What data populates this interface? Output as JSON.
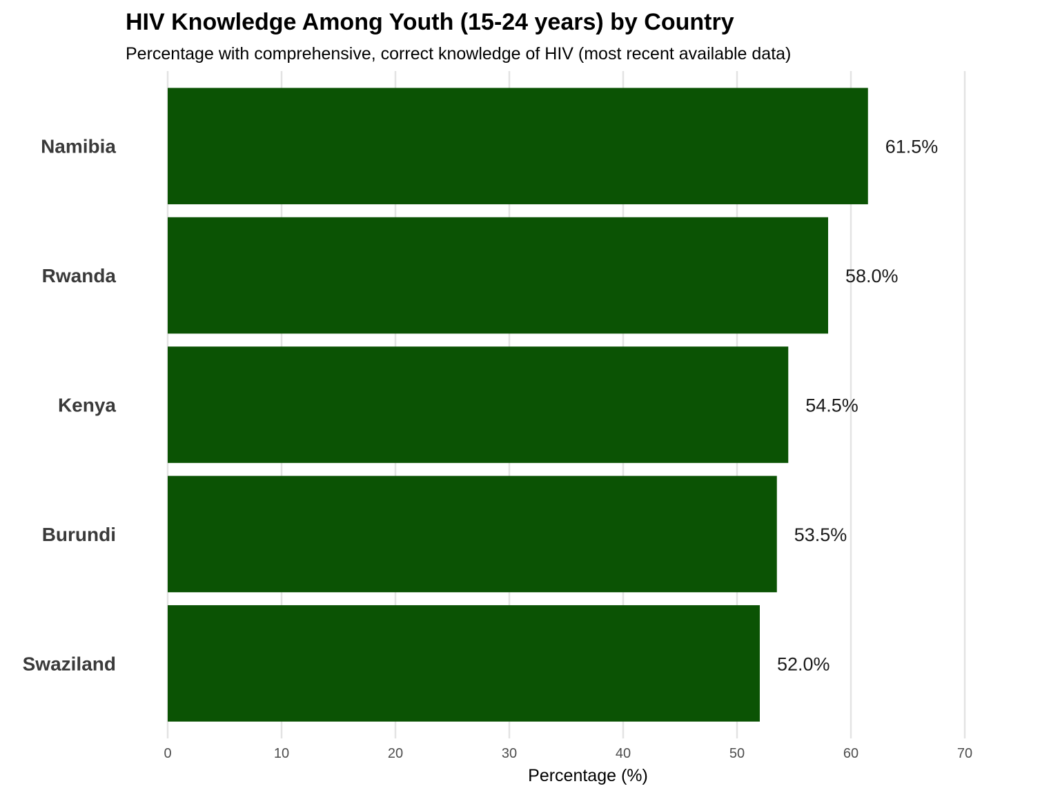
{
  "chart_data": {
    "type": "bar",
    "orientation": "horizontal",
    "title": "HIV Knowledge Among Youth (15-24 years) by Country",
    "subtitle": "Percentage with comprehensive, correct knowledge of HIV (most recent available data)",
    "xlabel": "Percentage (%)",
    "ylabel": "",
    "categories": [
      "Namibia",
      "Rwanda",
      "Kenya",
      "Burundi",
      "Swaziland"
    ],
    "values": [
      61.5,
      58.0,
      54.5,
      53.5,
      52.0
    ],
    "data_labels": [
      "61.5%",
      "58.0%",
      "54.5%",
      "53.5%",
      "52.0%"
    ],
    "xlim": [
      0,
      70
    ],
    "x_ticks": [
      0,
      10,
      20,
      30,
      40,
      50,
      60,
      70
    ],
    "grid": true,
    "legend": "none",
    "bar_color": "#0b5304"
  }
}
